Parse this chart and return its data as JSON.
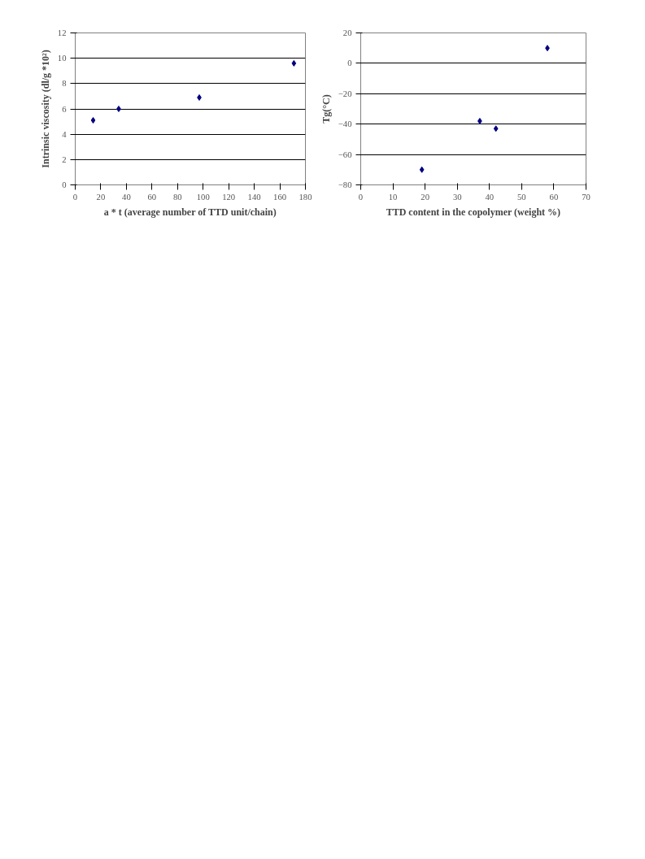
{
  "chart_data": [
    {
      "type": "scatter",
      "xlabel": "a * t (average number of TTD unit/chain)",
      "ylabel": "Intrinsic viscosity (dl/g *10²)",
      "x": [
        14,
        34,
        97,
        171
      ],
      "series": [
        {
          "color": "#000080",
          "values": [
            5.1,
            6.0,
            6.9,
            9.6
          ]
        }
      ],
      "xlim": [
        0,
        180
      ],
      "xticks": [
        0,
        20,
        40,
        60,
        80,
        100,
        120,
        140,
        160,
        180
      ],
      "ylim": [
        0,
        12
      ],
      "yticks": [
        0,
        2,
        4,
        6,
        8,
        10,
        12
      ],
      "grid": "y",
      "marker": "diamond"
    },
    {
      "type": "scatter",
      "xlabel": "TTD content in the copolymer (weight %)",
      "ylabel": "Tg(°C)",
      "x": [
        19,
        37,
        42,
        58
      ],
      "series": [
        {
          "color": "#000080",
          "values": [
            -70,
            -38,
            -43,
            10
          ]
        }
      ],
      "xlim": [
        0,
        70
      ],
      "xticks": [
        0,
        10,
        20,
        30,
        40,
        50,
        60,
        70
      ],
      "ylim": [
        -80,
        20
      ],
      "yticks": [
        -80,
        -60,
        -40,
        -20,
        0,
        20
      ],
      "grid": "y",
      "marker": "diamond"
    }
  ]
}
